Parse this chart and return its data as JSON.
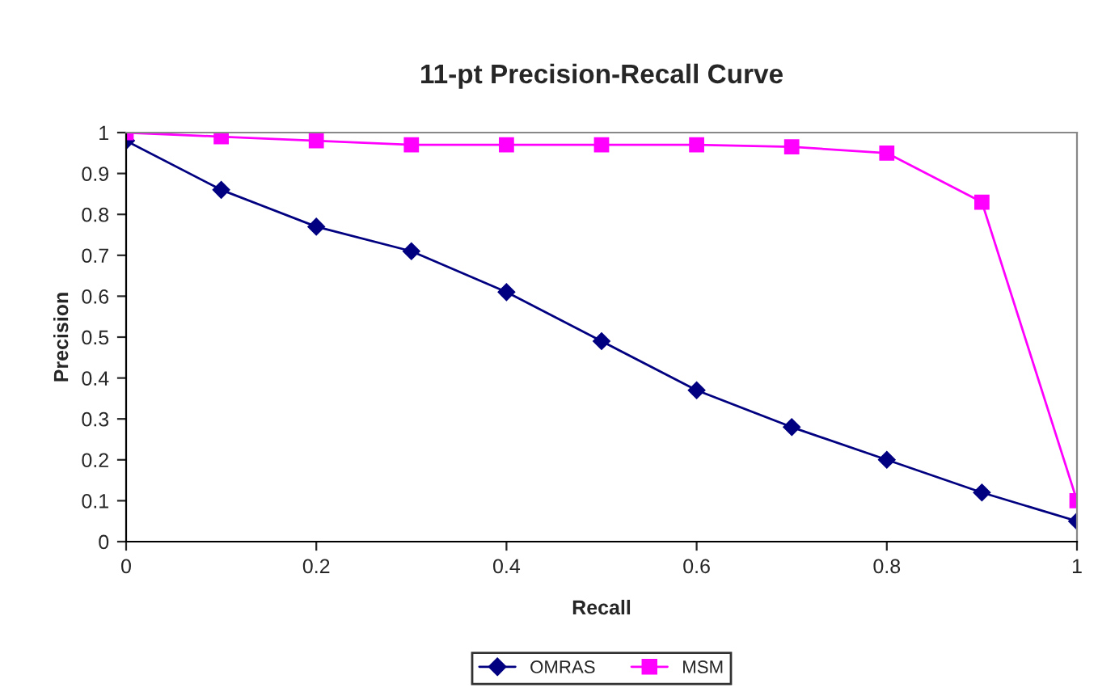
{
  "chart_data": {
    "type": "line",
    "title": "11-pt Precision-Recall Curve",
    "xlabel": "Recall",
    "ylabel": "Precision",
    "x": [
      0,
      0.1,
      0.2,
      0.3,
      0.4,
      0.5,
      0.6,
      0.7,
      0.8,
      0.9,
      1
    ],
    "series": [
      {
        "name": "OMRAS",
        "color": "#000080",
        "marker": "diamond",
        "values": [
          0.98,
          0.86,
          0.77,
          0.71,
          0.61,
          0.49,
          0.37,
          0.28,
          0.2,
          0.12,
          0.05
        ]
      },
      {
        "name": "MSM",
        "color": "#ff00ff",
        "marker": "square",
        "values": [
          1.0,
          0.99,
          0.98,
          0.97,
          0.97,
          0.97,
          0.97,
          0.965,
          0.95,
          0.83,
          0.1
        ]
      }
    ],
    "xlim": [
      0,
      1
    ],
    "xticks": [
      0,
      0.2,
      0.4,
      0.6,
      0.8,
      1
    ],
    "ylim": [
      0,
      1
    ],
    "yticks": [
      0,
      0.1,
      0.2,
      0.3,
      0.4,
      0.5,
      0.6,
      0.7,
      0.8,
      0.9,
      1
    ],
    "grid": false,
    "legend": "bottom"
  }
}
